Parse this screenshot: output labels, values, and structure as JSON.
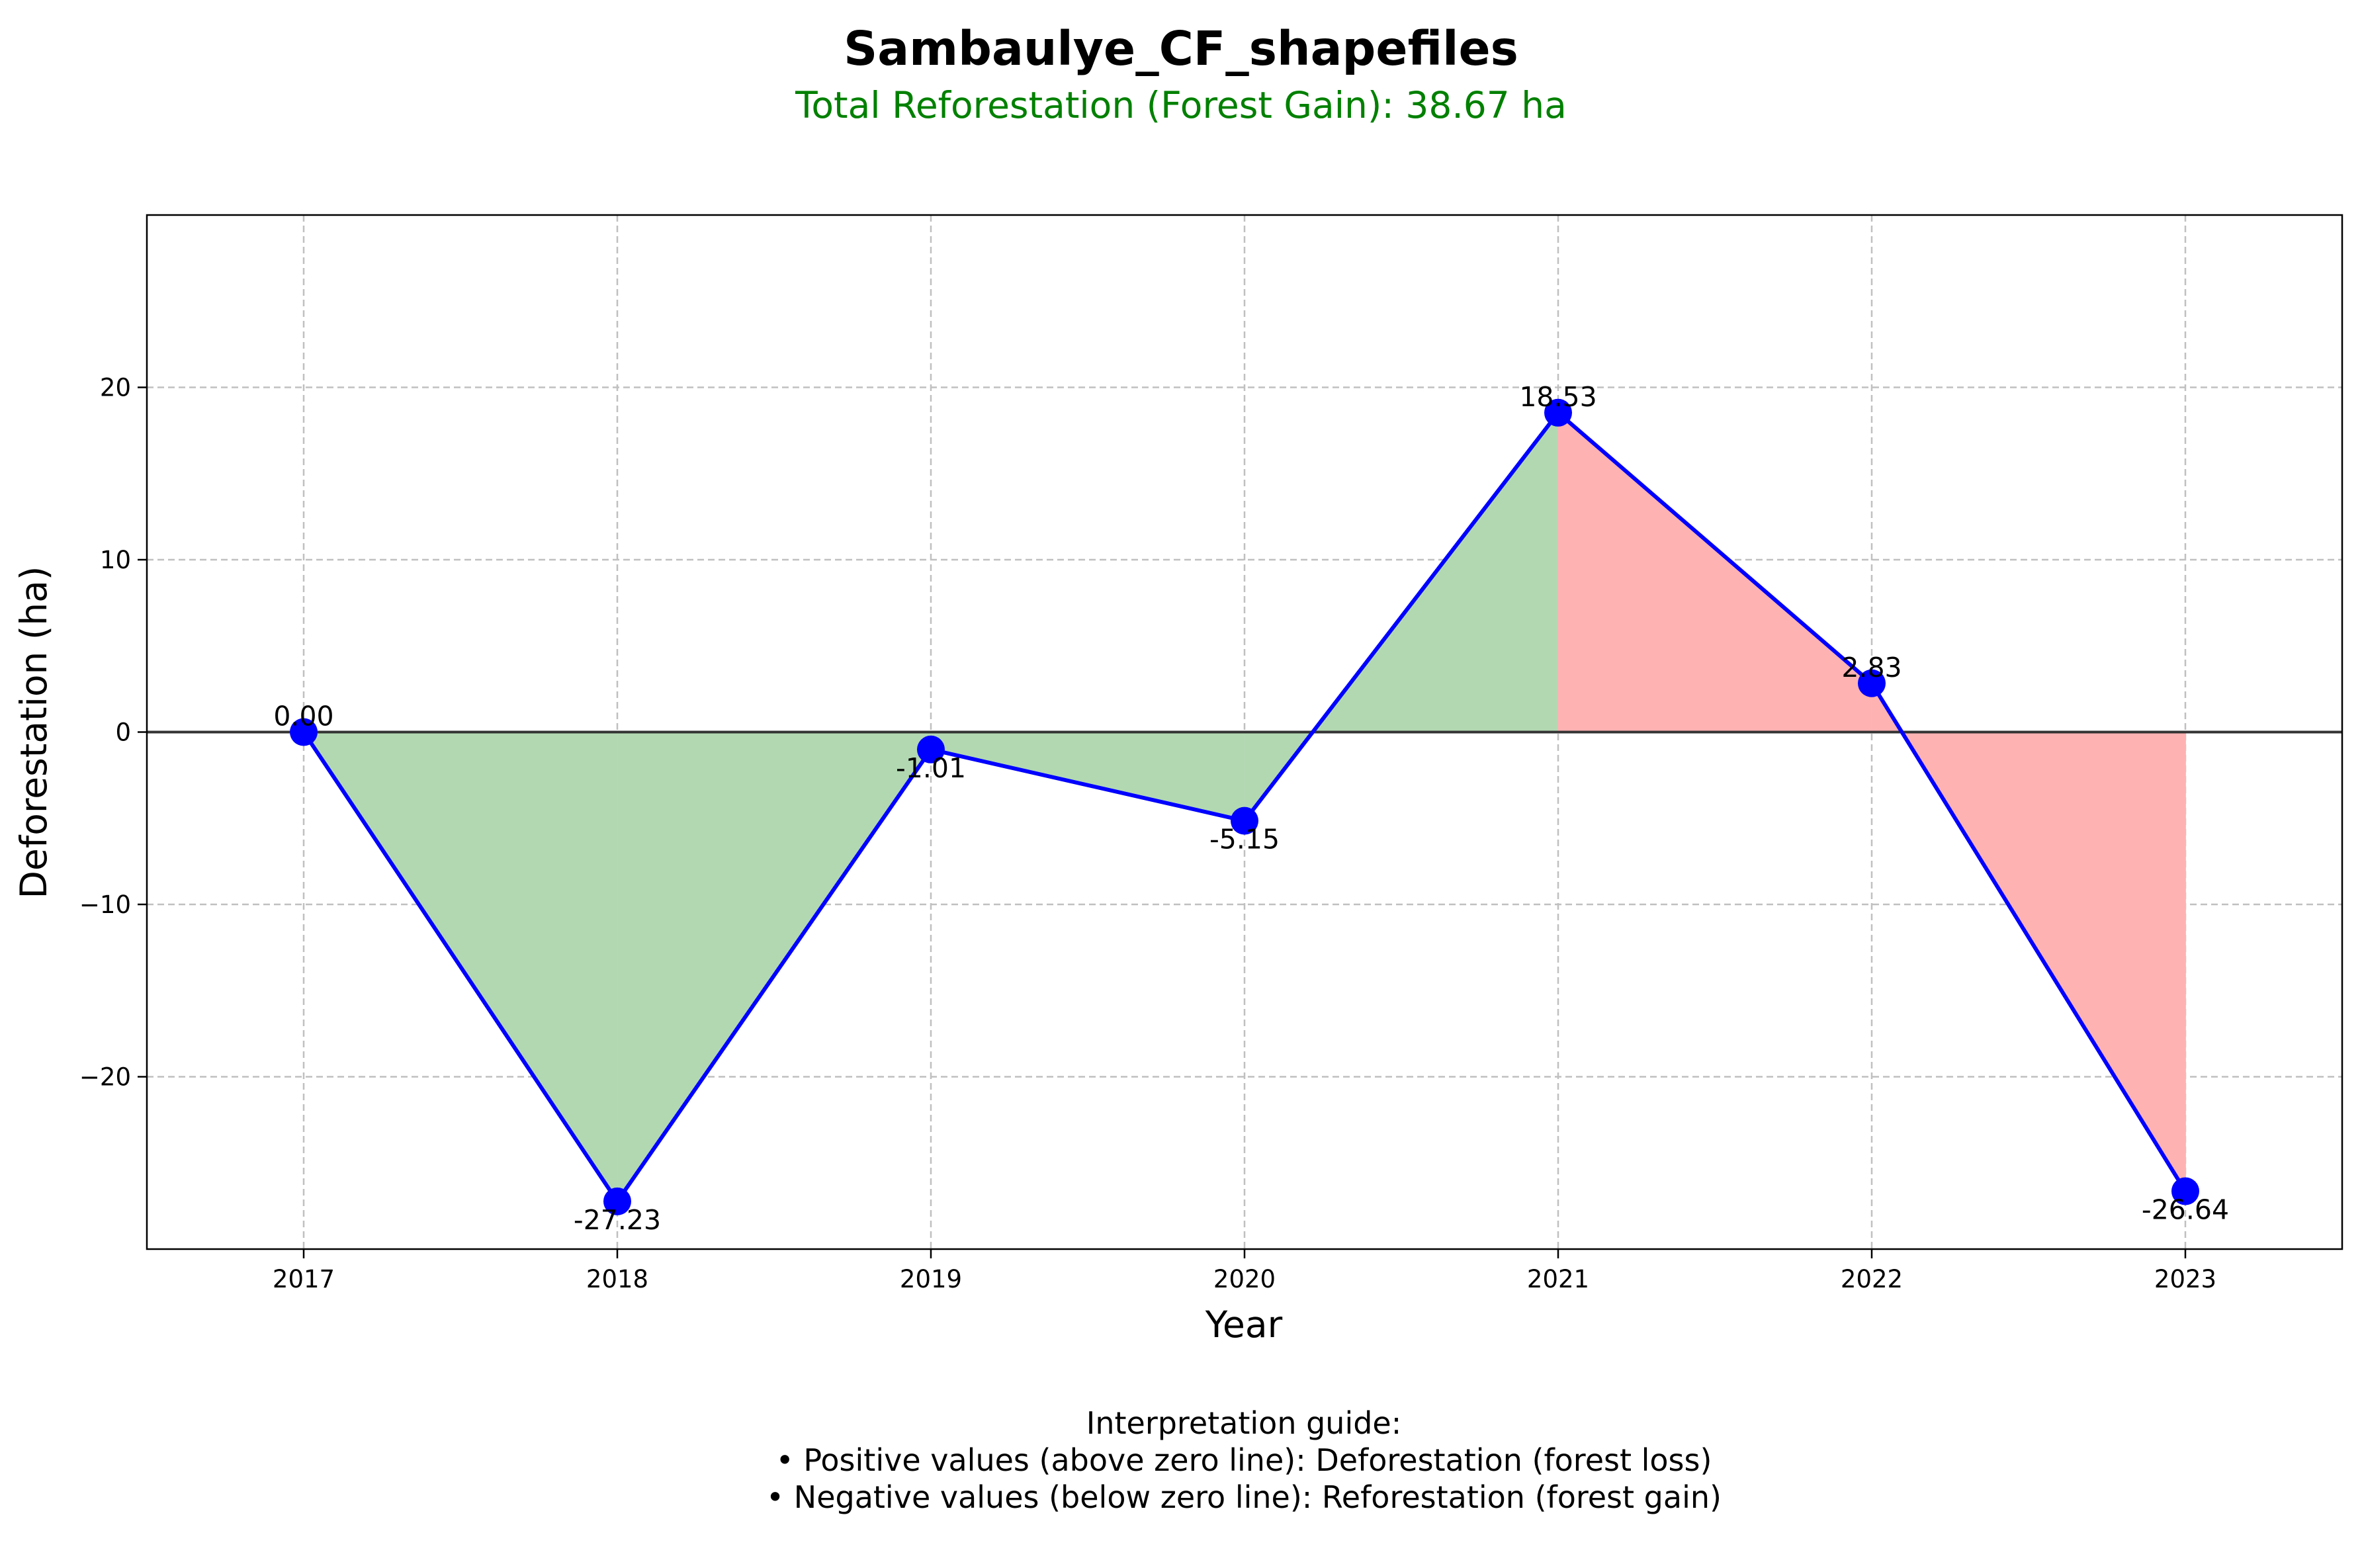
{
  "chart_data": {
    "type": "line",
    "title": "Sambaulye_CF_shapefiles",
    "subtitle": "Total Reforestation (Forest Gain): 38.67 ha",
    "xlabel": "Year",
    "ylabel": "Deforestation (ha)",
    "categories": [
      "2017",
      "2018",
      "2019",
      "2020",
      "2021",
      "2022",
      "2023"
    ],
    "series": [
      {
        "values": [
          0.0,
          -27.23,
          -1.01,
          -5.15,
          18.53,
          2.83,
          -26.64
        ]
      }
    ],
    "data_labels": [
      "0.00",
      "-27.23",
      "-1.01",
      "-5.15",
      "18.53",
      "2.83",
      "-26.64"
    ],
    "y_ticks": [
      20,
      10,
      0,
      -10,
      -20
    ],
    "y_tick_labels": [
      "20",
      "10",
      "0",
      "−10",
      "−20"
    ],
    "ylim": [
      -30,
      30
    ],
    "xlim": [
      -0.5,
      6.5
    ],
    "grid": true,
    "legend": "none",
    "fill_regions": [
      {
        "from_index": 0,
        "to_index": 4,
        "meaning": "gain"
      },
      {
        "from_index": 4,
        "to_index": 6,
        "meaning": "loss"
      }
    ],
    "colors": {
      "line": "#0000ff",
      "marker": "#0000ff",
      "gain_fill": "#b2d8b2",
      "loss_fill": "#ffb2b2",
      "zero_line": "#333333",
      "grid": "#c0c0c0",
      "subtitle": "#008000"
    },
    "guide": {
      "heading": "Interpretation guide:",
      "line1": "• Positive values (above zero line): Deforestation (forest loss)",
      "line2": "• Negative values (below zero line): Reforestation (forest gain)"
    }
  }
}
